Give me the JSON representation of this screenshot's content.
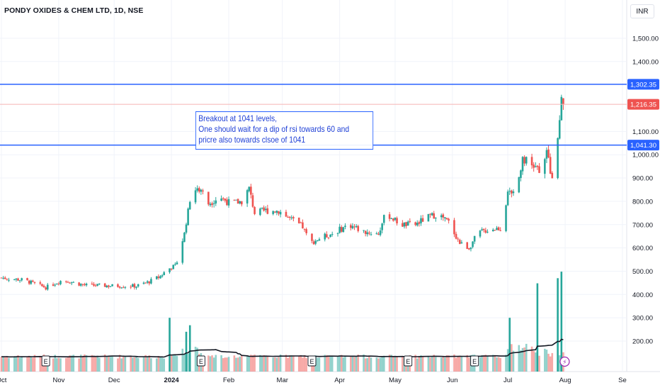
{
  "header": {
    "title": "PONDY OXIDES & CHEM LTD, 1D, NSE",
    "currency": "INR"
  },
  "note": {
    "lines": [
      "Breakout at 1041 levels,",
      "One should wait for  a dip of rsi towards 60 and",
      "pricre also towards clsoe of 1041"
    ]
  },
  "colors": {
    "up": "#26a69a",
    "down": "#ef5350",
    "line": "#2962ff",
    "ma": "#131722",
    "bg": "#ffffff"
  },
  "chart_data": {
    "type": "candlestick",
    "symbol": "PONDY OXIDES & CHEM LTD",
    "interval": "1D",
    "exchange": "NSE",
    "currency": "INR",
    "y_range": [
      120,
      1620
    ],
    "y_ticks": [
      200,
      300,
      400,
      500,
      600,
      700,
      800,
      900,
      1000,
      1100,
      1400,
      1500
    ],
    "y_tick_labels": [
      "200.00",
      "300.00",
      "400.00",
      "500.00",
      "600.00",
      "700.00",
      "800.00",
      "900.00",
      "1,000.00",
      "1,100.00",
      "1,400.00",
      "1,500.00"
    ],
    "x_labels": [
      {
        "label": "Oct",
        "day": 0
      },
      {
        "label": "Nov",
        "day": 31
      },
      {
        "label": "Dec",
        "day": 61
      },
      {
        "label": "2024",
        "day": 92
      },
      {
        "label": "Feb",
        "day": 123
      },
      {
        "label": "Mar",
        "day": 152
      },
      {
        "label": "Apr",
        "day": 183
      },
      {
        "label": "May",
        "day": 213
      },
      {
        "label": "Jun",
        "day": 244
      },
      {
        "label": "Jul",
        "day": 274
      },
      {
        "label": "Aug",
        "day": 305
      },
      {
        "label": "Se",
        "day": 336
      }
    ],
    "horizontal_lines": [
      {
        "value": 1302.35,
        "label": "1,302.35",
        "color": "#2962ff"
      },
      {
        "value": 1041.3,
        "label": "1,041.30",
        "color": "#2962ff"
      }
    ],
    "last_price": {
      "value": 1216.35,
      "label": "1,216.35",
      "color": "#ef5350"
    },
    "earnings_markers": [
      24,
      108,
      168,
      220,
      256
    ],
    "price_series": [
      {
        "day": 0,
        "close": 472
      },
      {
        "day": 12,
        "close": 462
      },
      {
        "day": 24,
        "close": 430
      },
      {
        "day": 33,
        "close": 462
      },
      {
        "day": 45,
        "close": 440
      },
      {
        "day": 60,
        "close": 437
      },
      {
        "day": 73,
        "close": 436
      },
      {
        "day": 80,
        "close": 455
      },
      {
        "day": 86,
        "close": 478
      },
      {
        "day": 90,
        "close": 510
      },
      {
        "day": 94,
        "close": 520
      },
      {
        "day": 99,
        "close": 660
      },
      {
        "day": 103,
        "close": 850
      },
      {
        "day": 108,
        "close": 850
      },
      {
        "day": 112,
        "close": 790
      },
      {
        "day": 118,
        "close": 820
      },
      {
        "day": 124,
        "close": 790
      },
      {
        "day": 130,
        "close": 800
      },
      {
        "day": 134,
        "close": 855
      },
      {
        "day": 137,
        "close": 750
      },
      {
        "day": 143,
        "close": 760
      },
      {
        "day": 150,
        "close": 760
      },
      {
        "day": 157,
        "close": 720
      },
      {
        "day": 163,
        "close": 690
      },
      {
        "day": 167,
        "close": 620
      },
      {
        "day": 172,
        "close": 640
      },
      {
        "day": 180,
        "close": 665
      },
      {
        "day": 188,
        "close": 700
      },
      {
        "day": 196,
        "close": 670
      },
      {
        "day": 204,
        "close": 660
      },
      {
        "day": 208,
        "close": 750
      },
      {
        "day": 216,
        "close": 700
      },
      {
        "day": 224,
        "close": 700
      },
      {
        "day": 230,
        "close": 730
      },
      {
        "day": 236,
        "close": 745
      },
      {
        "day": 242,
        "close": 710
      },
      {
        "day": 248,
        "close": 620
      },
      {
        "day": 253,
        "close": 600
      },
      {
        "day": 258,
        "close": 665
      },
      {
        "day": 264,
        "close": 680
      },
      {
        "day": 270,
        "close": 685
      },
      {
        "day": 274,
        "close": 830
      },
      {
        "day": 279,
        "close": 860
      },
      {
        "day": 282,
        "close": 990
      },
      {
        "day": 287,
        "close": 950
      },
      {
        "day": 291,
        "close": 940
      },
      {
        "day": 295,
        "close": 1010
      },
      {
        "day": 298,
        "close": 895
      },
      {
        "day": 301,
        "close": 1060
      },
      {
        "day": 303,
        "close": 1230
      },
      {
        "day": 304,
        "close": 1216
      }
    ],
    "volume_bars": [
      {
        "day": 91,
        "value": 300
      },
      {
        "day": 100,
        "value": 240
      },
      {
        "day": 102,
        "value": 268
      },
      {
        "day": 104,
        "value": 268
      },
      {
        "day": 275,
        "value": 300
      },
      {
        "day": 290,
        "value": 448
      },
      {
        "day": 301,
        "value": 470
      },
      {
        "day": 303,
        "value": 498
      }
    ]
  }
}
